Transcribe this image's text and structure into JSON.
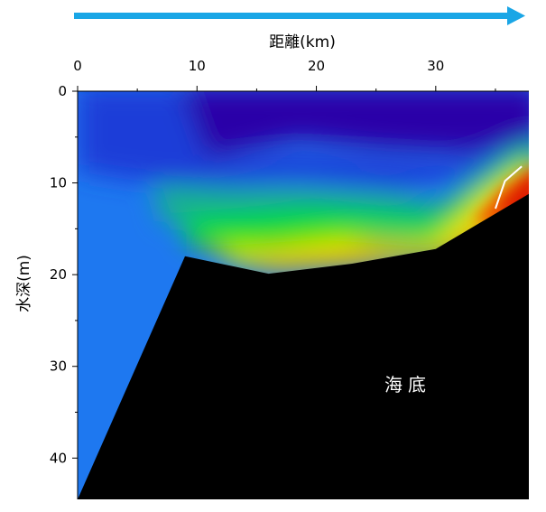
{
  "chart_data": {
    "type": "heatmap",
    "title": "",
    "xlabel": "距離(km)",
    "ylabel": "水深(m)",
    "x_ticks": [
      0,
      10,
      20,
      30
    ],
    "y_ticks": [
      0,
      10,
      20,
      30,
      40
    ],
    "xlim": [
      0,
      37.8
    ],
    "ylim": [
      0,
      44.5
    ],
    "x_axis_position": "top",
    "y_axis_inverted": true,
    "direction_arrow": "left-to-right",
    "arrow_color": "#1aa6e6",
    "seabed_color": "#000000",
    "seabed_label": "海底",
    "seabed_profile": [
      {
        "x": 0,
        "y": 44.5
      },
      {
        "x": 9,
        "y": 18
      },
      {
        "x": 16,
        "y": 19.9
      },
      {
        "x": 23,
        "y": 18.8
      },
      {
        "x": 30,
        "y": 17.2
      },
      {
        "x": 37.8,
        "y": 11.2
      }
    ],
    "color_scale": [
      "#2a00a8",
      "#1e3cd8",
      "#1e78f0",
      "#12b48c",
      "#00e000",
      "#f0f000",
      "#f0b400",
      "#f05a00",
      "#e01e00"
    ],
    "contour_line": [
      {
        "x": 35,
        "y": 12.8
      },
      {
        "x": 35.8,
        "y": 9.8
      },
      {
        "x": 37.2,
        "y": 8.2
      }
    ]
  }
}
